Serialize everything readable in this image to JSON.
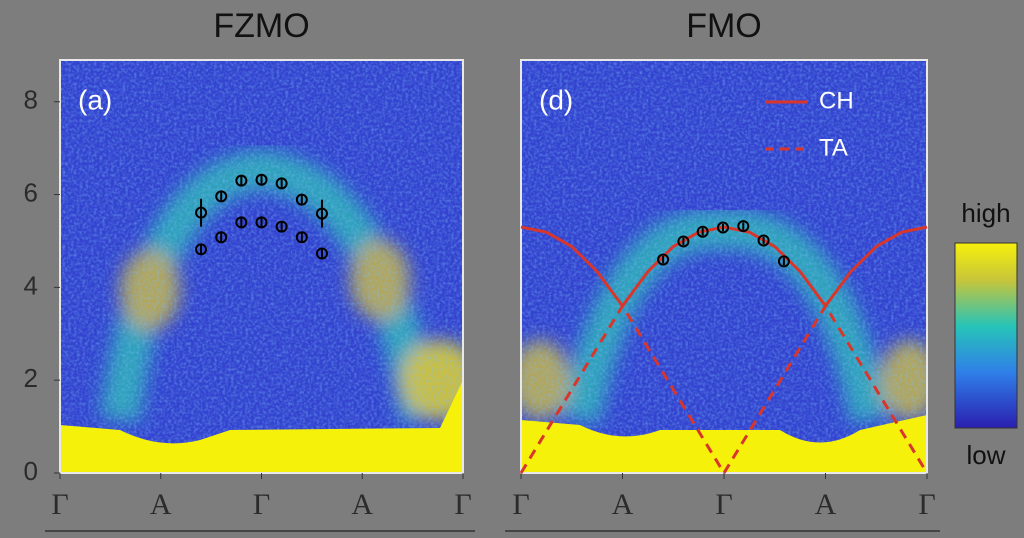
{
  "chart_data": [
    {
      "type": "scatter",
      "title": "FZMO",
      "annotation": "(a)",
      "xlim": [
        0,
        4
      ],
      "ylim": [
        0,
        8.9
      ],
      "xticks": [
        {
          "value": 0,
          "label": "Γ"
        },
        {
          "value": 1,
          "label": "A"
        },
        {
          "value": 2,
          "label": "Γ"
        },
        {
          "value": 3,
          "label": "A"
        },
        {
          "value": 4,
          "label": "Γ"
        }
      ],
      "yticks": [
        0,
        2,
        4,
        6,
        8
      ],
      "series": [
        {
          "color": "#000000",
          "x": [
            1.4,
            1.6,
            1.8,
            2.0,
            2.2,
            2.4,
            2.6
          ],
          "values": [
            5.61,
            5.96,
            6.3,
            6.32,
            6.24,
            5.89,
            5.59
          ],
          "errors": [
            0.3,
            0.1,
            0.1,
            0.1,
            0.1,
            0.1,
            0.3
          ]
        },
        {
          "color": "#000000",
          "x": [
            1.4,
            1.6,
            1.8,
            2.0,
            2.2,
            2.4,
            2.6
          ],
          "values": [
            4.82,
            5.08,
            5.4,
            5.4,
            5.31,
            5.08,
            4.73
          ],
          "errors": [
            0.12,
            0.1,
            0.1,
            0.1,
            0.1,
            0.1,
            0.12
          ]
        }
      ]
    },
    {
      "type": "scatter",
      "title": "FMO",
      "annotation": "(d)",
      "xlim": [
        0,
        4
      ],
      "ylim": [
        0,
        8.9
      ],
      "xticks": [
        {
          "value": 0,
          "label": "Γ"
        },
        {
          "value": 1,
          "label": "A"
        },
        {
          "value": 2,
          "label": "Γ"
        },
        {
          "value": 3,
          "label": "A"
        },
        {
          "value": 4,
          "label": "Γ"
        }
      ],
      "legend": "upper right",
      "series": [
        {
          "name": "CH",
          "color": "#d9362b",
          "line_style": "solid",
          "x": [
            0,
            0.25,
            0.5,
            0.75,
            1,
            1.25,
            1.5,
            1.75,
            2,
            2.25,
            2.5,
            2.75,
            3,
            3.25,
            3.5,
            3.75,
            4
          ],
          "values": [
            5.3,
            5.19,
            4.88,
            4.34,
            3.6,
            4.34,
            4.88,
            5.19,
            5.3,
            5.19,
            4.88,
            4.34,
            3.6,
            4.34,
            4.88,
            5.19,
            5.3
          ]
        },
        {
          "name": "TA",
          "color": "#d9362b",
          "line_style": "dashed",
          "x": [
            0,
            1,
            2,
            3,
            4
          ],
          "values": [
            0,
            3.6,
            0,
            3.6,
            0
          ]
        },
        {
          "color": "#000000",
          "x": [
            1.4,
            1.6,
            1.79,
            1.99,
            2.19,
            2.39,
            2.59
          ],
          "values": [
            4.6,
            4.99,
            5.2,
            5.29,
            5.32,
            5.01,
            4.56
          ],
          "errors": [
            0.08,
            0.08,
            0.08,
            0.08,
            0.08,
            0.08,
            0.08
          ]
        }
      ]
    }
  ],
  "colorbar": {
    "high": "high",
    "low": "low"
  }
}
